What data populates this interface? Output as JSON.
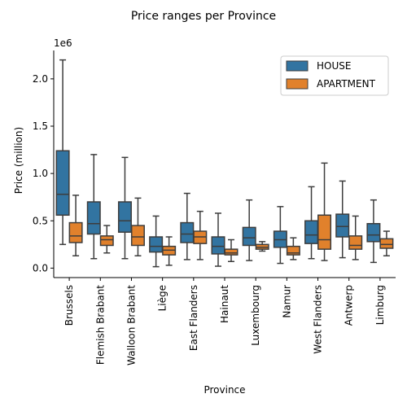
{
  "chart_data": {
    "type": "box",
    "title": "Price ranges per Province",
    "xlabel": "Province",
    "ylabel": "Price (million)",
    "y_offset_label": "1e6",
    "ylim": [
      -100000,
      2300000
    ],
    "yticks": [
      0,
      500000,
      1000000,
      1500000,
      2000000
    ],
    "ytick_labels": [
      "0.0",
      "0.5",
      "1.0",
      "1.5",
      "2.0"
    ],
    "legend_position": "top-right",
    "categories": [
      "Brussels",
      "Flemish Brabant",
      "Walloon Brabant",
      "Liège",
      "East Flanders",
      "Hainaut",
      "Luxembourg",
      "Namur",
      "West Flanders",
      "Antwerp",
      "Limburg"
    ],
    "series": [
      {
        "name": "HOUSE",
        "color": "#3274a1",
        "boxes": [
          {
            "whislo": 250000,
            "q1": 560000,
            "med": 780000,
            "q3": 1240000,
            "whishi": 2200000
          },
          {
            "whislo": 100000,
            "q1": 360000,
            "med": 470000,
            "q3": 700000,
            "whishi": 1200000
          },
          {
            "whislo": 100000,
            "q1": 380000,
            "med": 500000,
            "q3": 700000,
            "whishi": 1170000
          },
          {
            "whislo": 15000,
            "q1": 170000,
            "med": 230000,
            "q3": 330000,
            "whishi": 550000
          },
          {
            "whislo": 90000,
            "q1": 270000,
            "med": 360000,
            "q3": 480000,
            "whishi": 790000
          },
          {
            "whislo": 20000,
            "q1": 150000,
            "med": 230000,
            "q3": 330000,
            "whishi": 580000
          },
          {
            "whislo": 80000,
            "q1": 240000,
            "med": 320000,
            "q3": 430000,
            "whishi": 720000
          },
          {
            "whislo": 50000,
            "q1": 220000,
            "med": 300000,
            "q3": 390000,
            "whishi": 650000
          },
          {
            "whislo": 100000,
            "q1": 260000,
            "med": 350000,
            "q3": 500000,
            "whishi": 860000
          },
          {
            "whislo": 110000,
            "q1": 330000,
            "med": 440000,
            "q3": 570000,
            "whishi": 920000
          },
          {
            "whislo": 60000,
            "q1": 280000,
            "med": 350000,
            "q3": 470000,
            "whishi": 720000
          }
        ]
      },
      {
        "name": "APARTMENT",
        "color": "#e1812c",
        "boxes": [
          {
            "whislo": 130000,
            "q1": 270000,
            "med": 340000,
            "q3": 480000,
            "whishi": 770000
          },
          {
            "whislo": 160000,
            "q1": 240000,
            "med": 300000,
            "q3": 340000,
            "whishi": 450000
          },
          {
            "whislo": 130000,
            "q1": 240000,
            "med": 330000,
            "q3": 450000,
            "whishi": 740000
          },
          {
            "whislo": 30000,
            "q1": 140000,
            "med": 190000,
            "q3": 230000,
            "whishi": 330000
          },
          {
            "whislo": 90000,
            "q1": 260000,
            "med": 330000,
            "q3": 390000,
            "whishi": 600000
          },
          {
            "whislo": 70000,
            "q1": 140000,
            "med": 160000,
            "q3": 200000,
            "whishi": 300000
          },
          {
            "whislo": 180000,
            "q1": 200000,
            "med": 220000,
            "q3": 250000,
            "whishi": 280000
          },
          {
            "whislo": 90000,
            "q1": 140000,
            "med": 160000,
            "q3": 230000,
            "whishi": 320000
          },
          {
            "whislo": 80000,
            "q1": 200000,
            "med": 300000,
            "q3": 560000,
            "whishi": 1110000
          },
          {
            "whislo": 90000,
            "q1": 200000,
            "med": 240000,
            "q3": 340000,
            "whishi": 550000
          },
          {
            "whislo": 130000,
            "q1": 210000,
            "med": 250000,
            "q3": 310000,
            "whishi": 390000
          }
        ]
      }
    ]
  }
}
